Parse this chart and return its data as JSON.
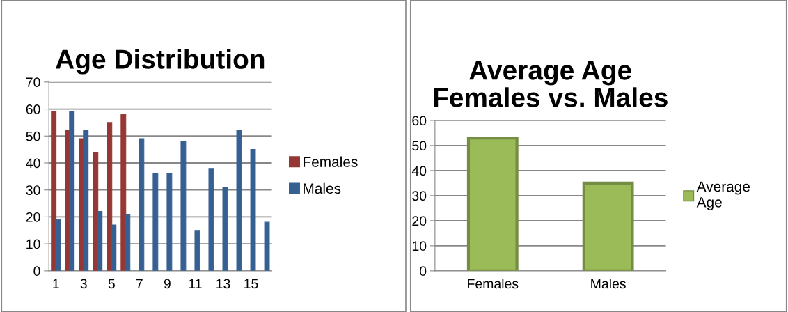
{
  "chart_data": [
    {
      "type": "bar",
      "title": "Age Distribution",
      "categories": [
        "1",
        null,
        "3",
        null,
        "5",
        null,
        "7",
        null,
        "9",
        null,
        "11",
        null,
        "13",
        null,
        "15",
        null
      ],
      "series": [
        {
          "name": "Females",
          "color": "#953735",
          "values": [
            59,
            52,
            49,
            44,
            55,
            58,
            null,
            null,
            null,
            null,
            null,
            null,
            null,
            null,
            null,
            null
          ]
        },
        {
          "name": "Males",
          "color": "#376092",
          "values": [
            19,
            59,
            52,
            22,
            17,
            21,
            49,
            36,
            36,
            48,
            15,
            38,
            31,
            52,
            45,
            18
          ]
        }
      ],
      "ylim": [
        0,
        70
      ],
      "yticks": [
        0,
        10,
        20,
        30,
        40,
        50,
        60,
        70
      ],
      "grid": "y",
      "legend": "right"
    },
    {
      "type": "bar",
      "title": "Average Age\nFemales vs. Males",
      "categories": [
        "Females",
        "Males"
      ],
      "series": [
        {
          "name": "Average\nAge",
          "color": "#9bbb59",
          "values": [
            53,
            35
          ]
        }
      ],
      "ylim": [
        0,
        60
      ],
      "yticks": [
        0,
        10,
        20,
        30,
        40,
        50,
        60
      ],
      "grid": "y",
      "legend": "right"
    }
  ]
}
